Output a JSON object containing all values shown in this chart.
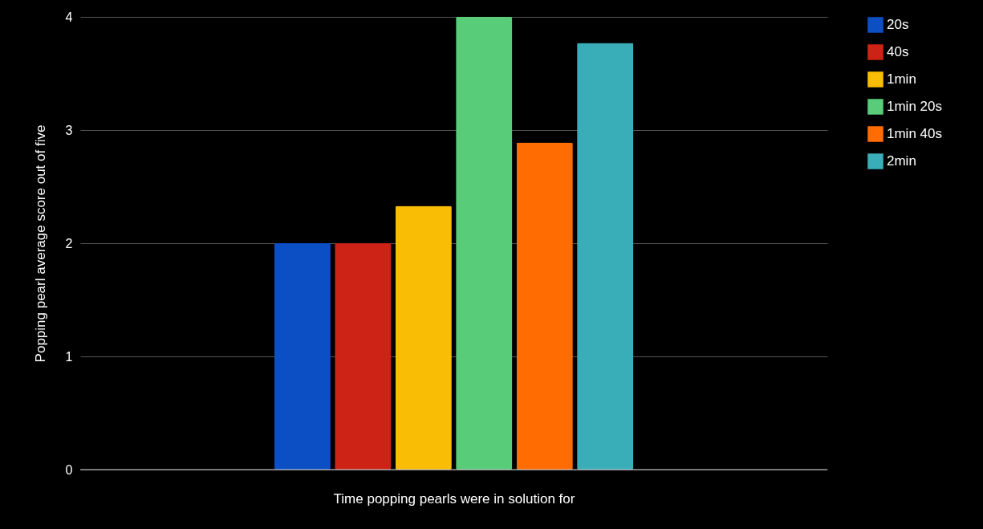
{
  "chart_data": {
    "type": "bar",
    "xlabel": "Time popping pearls were in solution for",
    "ylabel": "Popping pearl average score out of five",
    "categories": [
      null
    ],
    "series": [
      {
        "name": "20s",
        "color": "#0c4fc4",
        "values": [
          2
        ]
      },
      {
        "name": "40s",
        "color": "#cc2316",
        "values": [
          2
        ]
      },
      {
        "name": "1min",
        "color": "#f9bd06",
        "values": [
          2.33
        ]
      },
      {
        "name": "1min 20s",
        "color": "#58cc78",
        "values": [
          4
        ]
      },
      {
        "name": "1min 40s",
        "color": "#fe6c02",
        "values": [
          2.89
        ]
      },
      {
        "name": "2min",
        "color": "#3aaeb8",
        "values": [
          3.77
        ]
      }
    ],
    "ylim": [
      0,
      4
    ],
    "yticks": [
      0,
      1,
      2,
      3,
      4
    ],
    "grid": "y",
    "legend": "right"
  }
}
